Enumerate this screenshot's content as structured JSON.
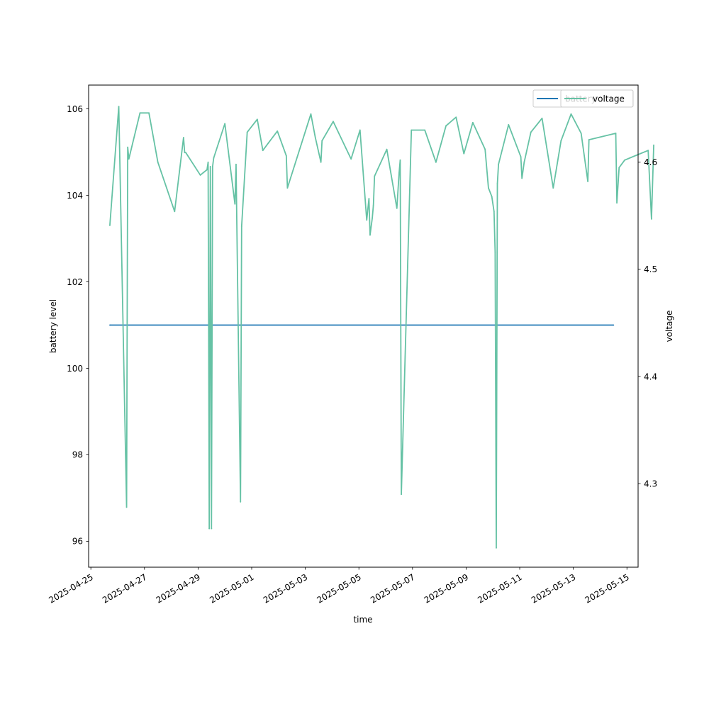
{
  "chart_data": {
    "type": "line",
    "xlabel": "time",
    "ylabel_left": "battery level",
    "ylabel_right": "voltage",
    "x_range": [
      "2025-04-24T22:00",
      "2025-05-15T10:00"
    ],
    "ylim_left": [
      95.4,
      106.55
    ],
    "ylim_right": [
      4.222,
      4.672
    ],
    "x_ticks": [
      "2025-04-25",
      "2025-04-27",
      "2025-04-29",
      "2025-05-01",
      "2025-05-03",
      "2025-05-05",
      "2025-05-07",
      "2025-05-09",
      "2025-05-11",
      "2025-05-13",
      "2025-05-15"
    ],
    "y_ticks_left": [
      96,
      98,
      100,
      102,
      104,
      106
    ],
    "y_ticks_right": [
      4.3,
      4.4,
      4.5,
      4.6
    ],
    "grid": false,
    "colors": {
      "battery": "#1f77b4",
      "voltage": "#66c2a5"
    },
    "legends": [
      {
        "axis": "left",
        "placement": "top-right",
        "entries": [
          {
            "label": "battery",
            "color": "#1f77b4"
          }
        ]
      },
      {
        "axis": "right",
        "placement": "top-right",
        "entries": [
          {
            "label": "voltage",
            "color": "#66c2a5"
          }
        ]
      }
    ],
    "series": [
      {
        "name": "battery",
        "axis": "left",
        "points": [
          [
            "2025-04-25T17:00",
            101.0
          ],
          [
            "2025-05-14T12:00",
            101.0
          ]
        ]
      },
      {
        "name": "voltage",
        "axis": "right",
        "points": [
          [
            "2025-04-25T17:00",
            4.541
          ],
          [
            "2025-04-26T01:00",
            4.652
          ],
          [
            "2025-04-26T08:00",
            4.278
          ],
          [
            "2025-04-26T09:00",
            4.614
          ],
          [
            "2025-04-26T10:00",
            4.603
          ],
          [
            "2025-04-26T20:00",
            4.646
          ],
          [
            "2025-04-27T04:00",
            4.646
          ],
          [
            "2025-04-27T12:00",
            4.6
          ],
          [
            "2025-04-28T03:00",
            4.554
          ],
          [
            "2025-04-28T11:00",
            4.623
          ],
          [
            "2025-04-28T12:00",
            4.609
          ],
          [
            "2025-04-28T13:00",
            4.609
          ],
          [
            "2025-04-29T02:00",
            4.588
          ],
          [
            "2025-04-29T08:00",
            4.593
          ],
          [
            "2025-04-29T09:00",
            4.6
          ],
          [
            "2025-04-29T10:00",
            4.258
          ],
          [
            "2025-04-29T11:00",
            4.596
          ],
          [
            "2025-04-29T12:00",
            4.258
          ],
          [
            "2025-04-29T13:00",
            4.596
          ],
          [
            "2025-04-29T14:00",
            4.604
          ],
          [
            "2025-04-30T00:00",
            4.636
          ],
          [
            "2025-04-30T09:00",
            4.561
          ],
          [
            "2025-04-30T10:00",
            4.598
          ],
          [
            "2025-04-30T14:00",
            4.283
          ],
          [
            "2025-04-30T15:00",
            4.54
          ],
          [
            "2025-04-30T20:00",
            4.628
          ],
          [
            "2025-05-01T05:00",
            4.64
          ],
          [
            "2025-05-01T10:00",
            4.611
          ],
          [
            "2025-05-01T15:00",
            4.618
          ],
          [
            "2025-05-01T23:00",
            4.629
          ],
          [
            "2025-05-02T07:00",
            4.606
          ],
          [
            "2025-05-02T08:00",
            4.576
          ],
          [
            "2025-05-03T05:00",
            4.645
          ],
          [
            "2025-05-03T09:00",
            4.623
          ],
          [
            "2025-05-03T14:00",
            4.6
          ],
          [
            "2025-05-03T15:00",
            4.62
          ],
          [
            "2025-05-04T01:00",
            4.638
          ],
          [
            "2025-05-04T17:00",
            4.603
          ],
          [
            "2025-05-05T01:00",
            4.63
          ],
          [
            "2025-05-05T07:00",
            4.546
          ],
          [
            "2025-05-05T08:00",
            4.556
          ],
          [
            "2025-05-05T09:00",
            4.566
          ],
          [
            "2025-05-05T10:00",
            4.532
          ],
          [
            "2025-05-05T12:00",
            4.548
          ],
          [
            "2025-05-05T13:00",
            4.56
          ],
          [
            "2025-05-05T14:00",
            4.587
          ],
          [
            "2025-05-06T01:00",
            4.612
          ],
          [
            "2025-05-06T10:00",
            4.557
          ],
          [
            "2025-05-06T12:00",
            4.59
          ],
          [
            "2025-05-06T13:00",
            4.602
          ],
          [
            "2025-05-06T14:00",
            4.29
          ],
          [
            "2025-05-06T23:00",
            4.63
          ],
          [
            "2025-05-07T11:00",
            4.63
          ],
          [
            "2025-05-07T21:00",
            4.6
          ],
          [
            "2025-05-08T06:00",
            4.634
          ],
          [
            "2025-05-08T15:00",
            4.642
          ],
          [
            "2025-05-08T22:00",
            4.608
          ],
          [
            "2025-05-09T06:00",
            4.637
          ],
          [
            "2025-05-09T17:00",
            4.612
          ],
          [
            "2025-05-09T20:00",
            4.576
          ],
          [
            "2025-05-09T23:00",
            4.568
          ],
          [
            "2025-05-10T01:00",
            4.554
          ],
          [
            "2025-05-10T02:00",
            4.516
          ],
          [
            "2025-05-10T03:00",
            4.24
          ],
          [
            "2025-05-10T04:00",
            4.58
          ],
          [
            "2025-05-10T05:00",
            4.598
          ],
          [
            "2025-05-10T14:00",
            4.635
          ],
          [
            "2025-05-11T01:00",
            4.605
          ],
          [
            "2025-05-11T02:00",
            4.585
          ],
          [
            "2025-05-11T04:00",
            4.6
          ],
          [
            "2025-05-11T10:00",
            4.628
          ],
          [
            "2025-05-11T20:00",
            4.641
          ],
          [
            "2025-05-12T06:00",
            4.576
          ],
          [
            "2025-05-12T13:00",
            4.62
          ],
          [
            "2025-05-12T22:00",
            4.645
          ],
          [
            "2025-05-13T07:00",
            4.627
          ],
          [
            "2025-05-13T13:00",
            4.582
          ],
          [
            "2025-05-13T14:00",
            4.621
          ],
          [
            "2025-05-14T14:00",
            4.627
          ],
          [
            "2025-05-14T15:00",
            4.562
          ],
          [
            "2025-05-14T17:00",
            4.595
          ],
          [
            "2025-05-14T22:00",
            4.602
          ],
          [
            "2025-05-15T19:00",
            4.611
          ],
          [
            "2025-05-15T22:00",
            4.547
          ],
          [
            "2025-05-16T00:00",
            4.616
          ]
        ]
      }
    ]
  }
}
